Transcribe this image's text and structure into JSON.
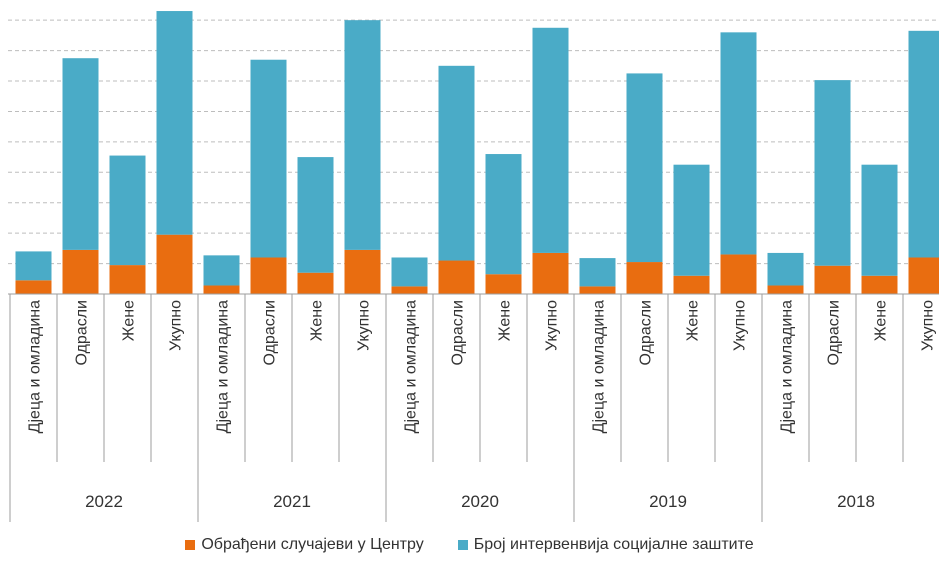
{
  "chart_data": {
    "type": "bar",
    "stacked": true,
    "groups": [
      "2022",
      "2021",
      "2020",
      "2019",
      "2018"
    ],
    "sub_categories": [
      "Дјеца и омладина",
      "Одрасли",
      "Жене",
      "Укупно"
    ],
    "series": [
      {
        "name": "Обрађени случајеви у Центру",
        "color": "#e96d10",
        "values": [
          [
            4.5,
            14.5,
            9.5,
            19.5
          ],
          [
            2.8,
            12.0,
            7.0,
            14.5
          ],
          [
            2.5,
            11.0,
            6.5,
            13.5
          ],
          [
            2.5,
            10.5,
            6.0,
            13.0
          ],
          [
            2.8,
            9.3,
            6.0,
            12.0
          ]
        ]
      },
      {
        "name": "Број интервенвија социјалне заштите",
        "color": "#4aabc7",
        "values": [
          [
            9.5,
            63.0,
            36.0,
            73.5
          ],
          [
            9.9,
            65.0,
            38.0,
            75.5
          ],
          [
            9.5,
            64.0,
            39.5,
            74.0
          ],
          [
            9.3,
            62.0,
            36.5,
            73.0
          ],
          [
            10.7,
            61.0,
            36.5,
            74.5
          ]
        ]
      }
    ],
    "ylim": [
      0,
      94
    ],
    "y_gridlines": [
      0,
      10,
      20,
      30,
      40,
      50,
      60,
      70,
      80,
      90
    ],
    "grid": "dashed horizontal",
    "legend_position": "bottom"
  }
}
